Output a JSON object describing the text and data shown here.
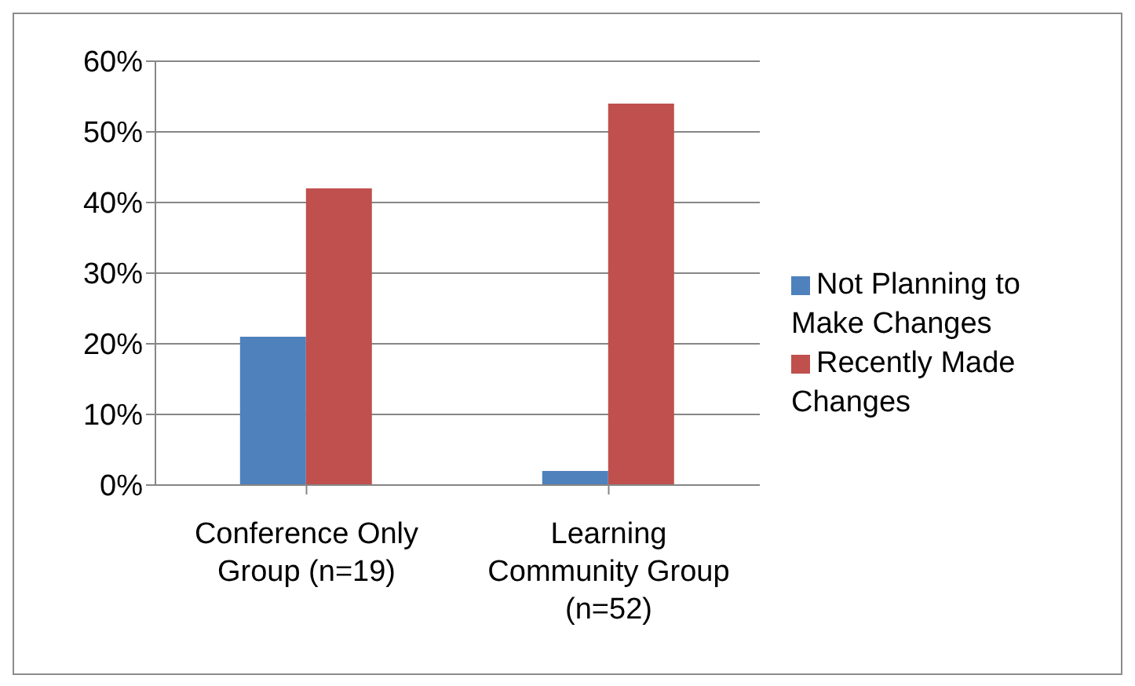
{
  "chart_data": {
    "type": "bar",
    "categories": [
      "Conference Only Group (n=19)",
      "Learning Community Group (n=52)"
    ],
    "series": [
      {
        "name": "Not Planning to Make Changes",
        "color": "#4f81bd",
        "values": [
          21,
          2
        ]
      },
      {
        "name": "Recently Made Changes",
        "color": "#c0504d",
        "values": [
          42,
          54
        ]
      }
    ],
    "ylim": [
      0,
      60
    ],
    "yticks": [
      {
        "value": 0,
        "label": "0%"
      },
      {
        "value": 10,
        "label": "10%"
      },
      {
        "value": 20,
        "label": "20%"
      },
      {
        "value": 30,
        "label": "30%"
      },
      {
        "value": 40,
        "label": "40%"
      },
      {
        "value": 50,
        "label": "50%"
      },
      {
        "value": 60,
        "label": "60%"
      }
    ],
    "grid": "y",
    "legend": "right"
  }
}
